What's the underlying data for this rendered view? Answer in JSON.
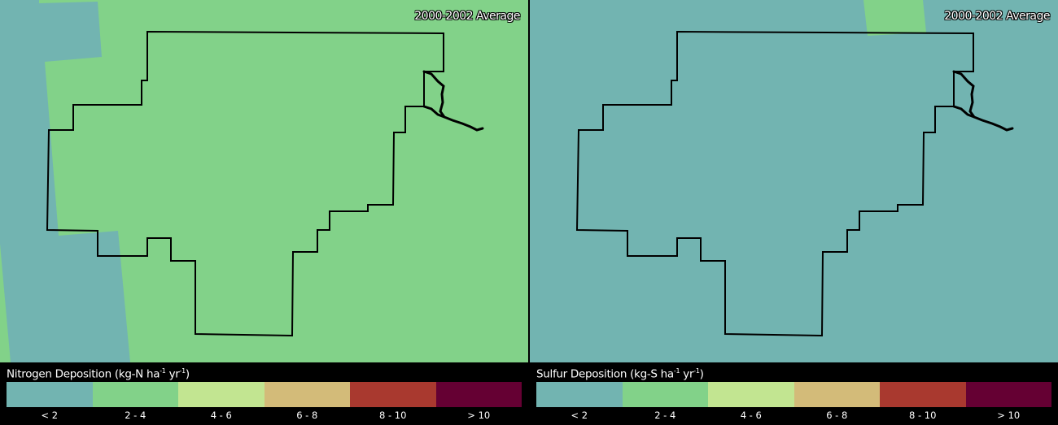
{
  "colors": {
    "lt2": "#72b4b1",
    "2-4": "#82d289",
    "4-6": "#c2e591",
    "6-8": "#d3bb79",
    "8-10": "#a9392f",
    "gt10": "#650033",
    "boundary": "#000000"
  },
  "panels": [
    {
      "name": "nitrogen",
      "period_label": "2000-2002 Average",
      "background_class": "2-4",
      "legend": {
        "title_pre": "Nitrogen Deposition (kg-N ha",
        "sup1": "-1",
        "mid": " yr",
        "sup2": "-1",
        "title_post": ")"
      }
    },
    {
      "name": "sulfur",
      "period_label": "2000-2002 Average",
      "background_class": "< 2",
      "legend": {
        "title_pre": "Sulfur Deposition (kg-S ha",
        "sup1": "-1",
        "mid": " yr",
        "sup2": "-1",
        "title_post": ")"
      }
    }
  ],
  "legend_classes": [
    "< 2",
    "2 - 4",
    "4 - 6",
    "6 - 8",
    "8 - 10",
    "> 10"
  ]
}
